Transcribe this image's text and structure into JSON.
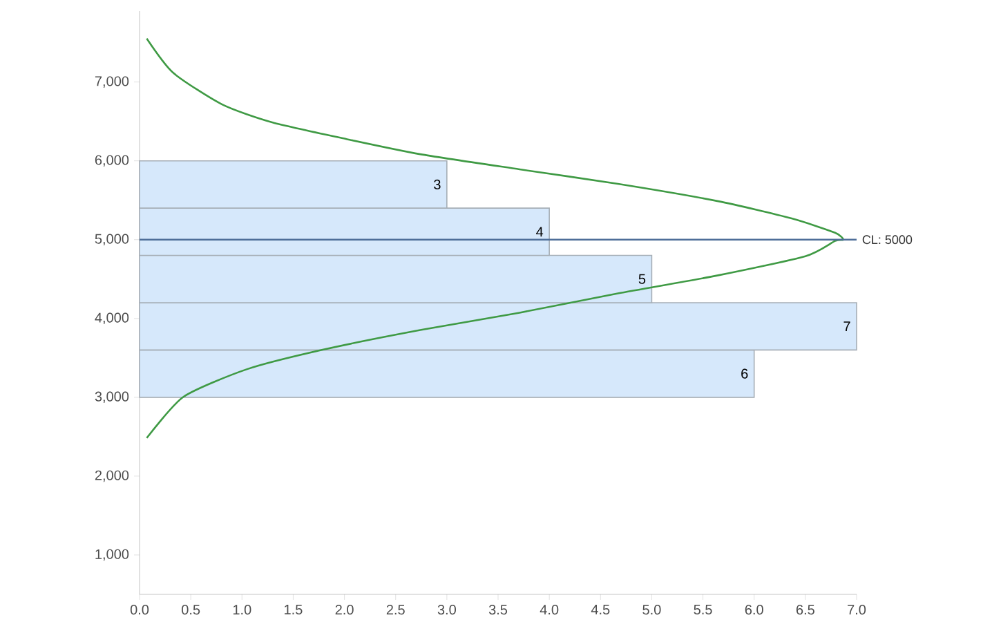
{
  "chart_data": {
    "type": "histogram",
    "orientation": "horizontal",
    "bins": [
      3000,
      3600,
      4200,
      4800,
      5400,
      6000
    ],
    "values": [
      6,
      7,
      5,
      4,
      3
    ],
    "color": "#d6e8fb",
    "value_labels": [
      "6",
      "7",
      "5",
      "4",
      "3"
    ],
    "series": [
      {
        "type": "line",
        "color": "#3f9a44",
        "x": [
          2483,
          3007,
          3357,
          3601,
          3853,
          4073,
          4318,
          4545,
          4790,
          4983,
          5000,
          5087,
          5271,
          5490,
          5708,
          5892,
          6084,
          6276,
          6486,
          6713,
          7115,
          7552
        ],
        "values": [
          0.07,
          0.43,
          1.05,
          1.78,
          2.74,
          3.71,
          4.67,
          5.64,
          6.5,
          6.79,
          6.87,
          6.79,
          6.36,
          5.64,
          4.67,
          3.71,
          2.74,
          2.02,
          1.3,
          0.81,
          0.33,
          0.07
        ]
      }
    ],
    "ref_lines": [
      {
        "axis": "y",
        "value": 5000,
        "label": "CL: 5000",
        "color": "#4e6e99"
      }
    ],
    "xlim": [
      0,
      7
    ],
    "xticks": [
      {
        "value": 0,
        "label": "0.0"
      },
      0.5,
      {
        "value": 1,
        "label": "1.0"
      },
      1.5,
      {
        "value": 2,
        "label": "2.0"
      },
      2.5,
      {
        "value": 3,
        "label": "3.0"
      },
      3.5,
      {
        "value": 4,
        "label": "4.0"
      },
      4.5,
      {
        "value": 5,
        "label": "5.0"
      },
      5.5,
      {
        "value": 6,
        "label": "6.0"
      },
      6.5,
      {
        "value": 7,
        "label": "7.0"
      }
    ],
    "ylim": [
      500,
      7900
    ],
    "yticks": [
      {
        "value": 1000,
        "label": "1,000"
      },
      {
        "value": 2000,
        "label": "2,000"
      },
      {
        "value": 3000,
        "label": "3,000"
      },
      {
        "value": 4000,
        "label": "4,000"
      },
      {
        "value": 5000,
        "label": "5,000"
      },
      {
        "value": 6000,
        "label": "6,000"
      },
      {
        "value": 7000,
        "label": "7,000"
      }
    ],
    "line_style": "solid"
  }
}
